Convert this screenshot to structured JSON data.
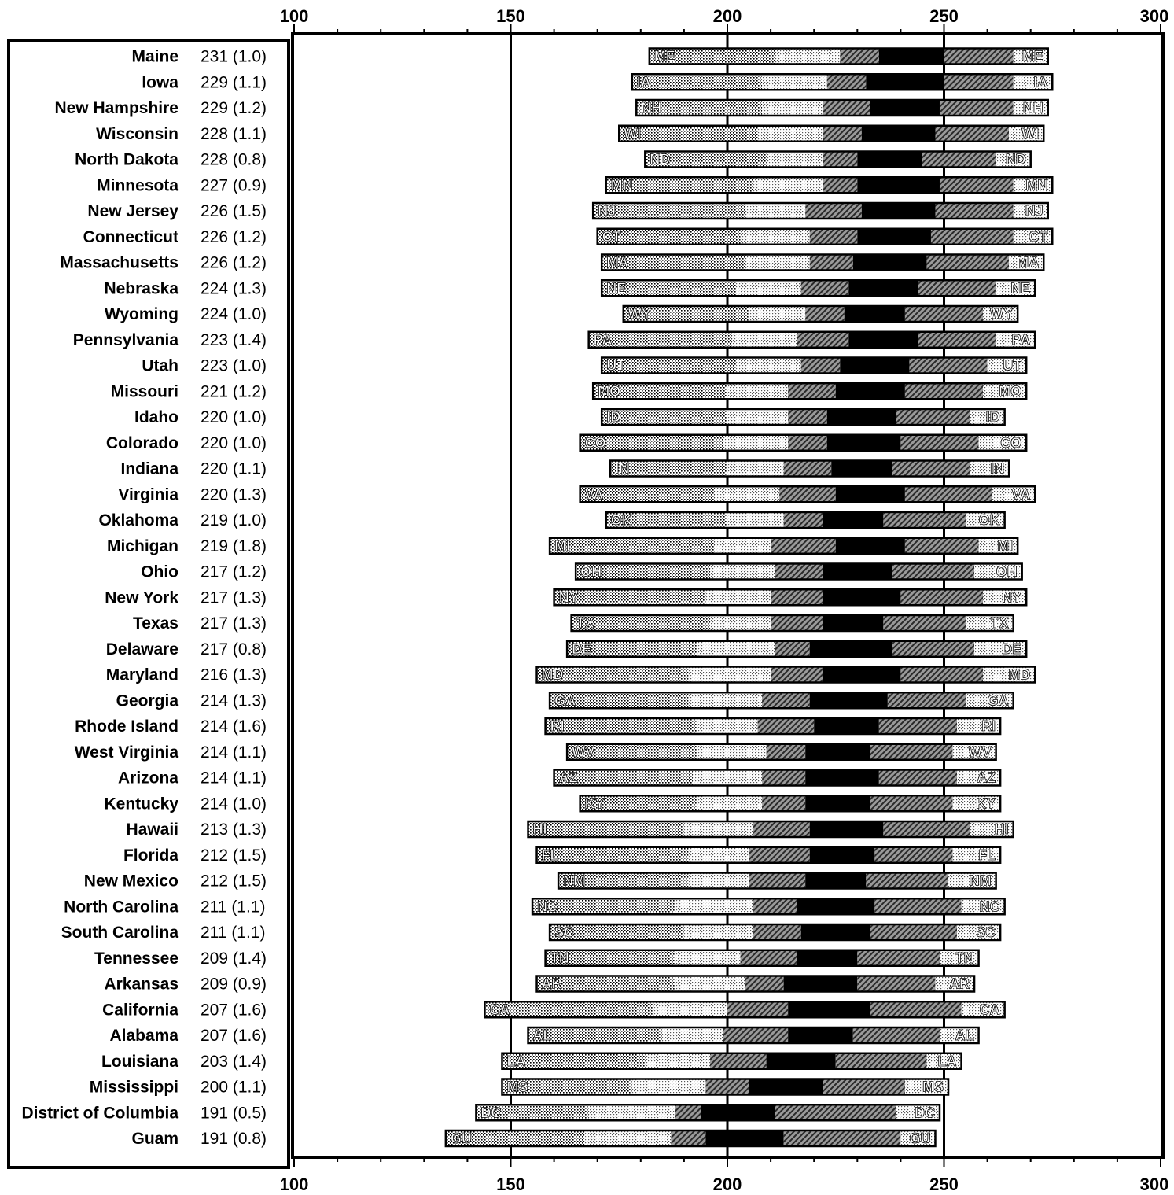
{
  "chart_data": {
    "type": "bar",
    "subtype": "percentile-range",
    "x_ticks": [
      100,
      150,
      200,
      250,
      300
    ],
    "xlim": [
      100,
      300
    ],
    "grid_lines": [
      150,
      200,
      250
    ],
    "segments": [
      "5th-10th",
      "10th-25th",
      "25th-40th",
      "40th-60th",
      "60th-75th",
      "75th-90th",
      "90th-95th"
    ],
    "rows": [
      {
        "state": "Maine",
        "mean": "231",
        "se": "(1.0)",
        "abbr": "ME",
        "p": [
          182,
          190,
          211,
          226,
          235,
          250,
          266,
          274
        ]
      },
      {
        "state": "Iowa",
        "mean": "229",
        "se": "(1.1)",
        "abbr": "IA",
        "p": [
          178,
          186,
          208,
          223,
          232,
          250,
          266,
          275
        ]
      },
      {
        "state": "New Hampshire",
        "mean": "229",
        "se": "(1.2)",
        "abbr": "NH",
        "p": [
          179,
          187,
          208,
          222,
          233,
          249,
          266,
          274
        ]
      },
      {
        "state": "Wisconsin",
        "mean": "228",
        "se": "(1.1)",
        "abbr": "WI",
        "p": [
          175,
          184,
          207,
          222,
          231,
          248,
          265,
          273
        ]
      },
      {
        "state": "North Dakota",
        "mean": "228",
        "se": "(0.8)",
        "abbr": "ND",
        "p": [
          181,
          189,
          209,
          222,
          230,
          245,
          262,
          270
        ]
      },
      {
        "state": "Minnesota",
        "mean": "227",
        "se": "(0.9)",
        "abbr": "MN",
        "p": [
          172,
          180,
          206,
          222,
          230,
          249,
          266,
          275
        ]
      },
      {
        "state": "New Jersey",
        "mean": "226",
        "se": "(1.5)",
        "abbr": "NJ",
        "p": [
          169,
          177,
          204,
          218,
          231,
          248,
          266,
          274
        ]
      },
      {
        "state": "Connecticut",
        "mean": "226",
        "se": "(1.2)",
        "abbr": "CT",
        "p": [
          170,
          178,
          203,
          219,
          230,
          247,
          266,
          275
        ]
      },
      {
        "state": "Massachusetts",
        "mean": "226",
        "se": "(1.2)",
        "abbr": "MA",
        "p": [
          171,
          179,
          204,
          219,
          229,
          246,
          265,
          273
        ]
      },
      {
        "state": "Nebraska",
        "mean": "224",
        "se": "(1.3)",
        "abbr": "NE",
        "p": [
          171,
          179,
          202,
          217,
          228,
          244,
          262,
          271
        ]
      },
      {
        "state": "Wyoming",
        "mean": "224",
        "se": "(1.0)",
        "abbr": "WY",
        "p": [
          176,
          184,
          205,
          218,
          227,
          241,
          259,
          267
        ]
      },
      {
        "state": "Pennsylvania",
        "mean": "223",
        "se": "(1.4)",
        "abbr": "PA",
        "p": [
          168,
          176,
          201,
          216,
          228,
          244,
          262,
          271
        ]
      },
      {
        "state": "Utah",
        "mean": "223",
        "se": "(1.0)",
        "abbr": "UT",
        "p": [
          171,
          179,
          202,
          217,
          226,
          242,
          260,
          269
        ]
      },
      {
        "state": "Missouri",
        "mean": "221",
        "se": "(1.2)",
        "abbr": "MO",
        "p": [
          169,
          177,
          200,
          214,
          225,
          241,
          259,
          269
        ]
      },
      {
        "state": "Idaho",
        "mean": "220",
        "se": "(1.0)",
        "abbr": "ID",
        "p": [
          171,
          179,
          200,
          214,
          223,
          239,
          256,
          264
        ]
      },
      {
        "state": "Colorado",
        "mean": "220",
        "se": "(1.0)",
        "abbr": "CO",
        "p": [
          166,
          174,
          199,
          214,
          223,
          240,
          258,
          269
        ]
      },
      {
        "state": "Indiana",
        "mean": "220",
        "se": "(1.1)",
        "abbr": "IN",
        "p": [
          173,
          181,
          200,
          213,
          224,
          238,
          256,
          265
        ]
      },
      {
        "state": "Virginia",
        "mean": "220",
        "se": "(1.3)",
        "abbr": "VA",
        "p": [
          166,
          174,
          197,
          212,
          225,
          241,
          261,
          271
        ]
      },
      {
        "state": "Oklahoma",
        "mean": "219",
        "se": "(1.0)",
        "abbr": "OK",
        "p": [
          172,
          180,
          200,
          213,
          222,
          236,
          255,
          264
        ]
      },
      {
        "state": "Michigan",
        "mean": "219",
        "se": "(1.8)",
        "abbr": "MI",
        "p": [
          159,
          167,
          197,
          210,
          225,
          241,
          258,
          267
        ]
      },
      {
        "state": "Ohio",
        "mean": "217",
        "se": "(1.2)",
        "abbr": "OH",
        "p": [
          165,
          173,
          196,
          211,
          222,
          238,
          257,
          268
        ]
      },
      {
        "state": "New York",
        "mean": "217",
        "se": "(1.3)",
        "abbr": "NY",
        "p": [
          160,
          168,
          195,
          210,
          222,
          240,
          259,
          269
        ]
      },
      {
        "state": "Texas",
        "mean": "217",
        "se": "(1.3)",
        "abbr": "TX",
        "p": [
          164,
          172,
          196,
          210,
          222,
          236,
          255,
          266
        ]
      },
      {
        "state": "Delaware",
        "mean": "217",
        "se": "(0.8)",
        "abbr": "DE",
        "p": [
          163,
          171,
          193,
          211,
          219,
          238,
          257,
          269
        ]
      },
      {
        "state": "Maryland",
        "mean": "216",
        "se": "(1.3)",
        "abbr": "MD",
        "p": [
          156,
          164,
          191,
          210,
          222,
          240,
          259,
          271
        ]
      },
      {
        "state": "Georgia",
        "mean": "214",
        "se": "(1.3)",
        "abbr": "GA",
        "p": [
          159,
          167,
          191,
          208,
          219,
          237,
          255,
          266
        ]
      },
      {
        "state": "Rhode Island",
        "mean": "214",
        "se": "(1.6)",
        "abbr": "RI",
        "p": [
          158,
          166,
          193,
          207,
          220,
          235,
          253,
          263
        ]
      },
      {
        "state": "West Virginia",
        "mean": "214",
        "se": "(1.1)",
        "abbr": "WV",
        "p": [
          163,
          171,
          193,
          209,
          218,
          233,
          252,
          262
        ]
      },
      {
        "state": "Arizona",
        "mean": "214",
        "se": "(1.1)",
        "abbr": "AZ",
        "p": [
          160,
          168,
          192,
          208,
          218,
          235,
          253,
          263
        ]
      },
      {
        "state": "Kentucky",
        "mean": "214",
        "se": "(1.0)",
        "abbr": "KY",
        "p": [
          166,
          174,
          193,
          208,
          218,
          233,
          252,
          263
        ]
      },
      {
        "state": "Hawaii",
        "mean": "213",
        "se": "(1.3)",
        "abbr": "HI",
        "p": [
          154,
          162,
          190,
          206,
          219,
          236,
          256,
          266
        ]
      },
      {
        "state": "Florida",
        "mean": "212",
        "se": "(1.5)",
        "abbr": "FL",
        "p": [
          156,
          164,
          191,
          205,
          219,
          234,
          252,
          263
        ]
      },
      {
        "state": "New Mexico",
        "mean": "212",
        "se": "(1.5)",
        "abbr": "NM",
        "p": [
          161,
          169,
          191,
          205,
          218,
          232,
          251,
          262
        ]
      },
      {
        "state": "North Carolina",
        "mean": "211",
        "se": "(1.1)",
        "abbr": "NC",
        "p": [
          155,
          163,
          188,
          206,
          216,
          234,
          254,
          264
        ]
      },
      {
        "state": "South Carolina",
        "mean": "211",
        "se": "(1.1)",
        "abbr": "SC",
        "p": [
          159,
          167,
          190,
          206,
          217,
          233,
          253,
          263
        ]
      },
      {
        "state": "Tennessee",
        "mean": "209",
        "se": "(1.4)",
        "abbr": "TN",
        "p": [
          158,
          166,
          188,
          203,
          216,
          230,
          249,
          258
        ]
      },
      {
        "state": "Arkansas",
        "mean": "209",
        "se": "(0.9)",
        "abbr": "AR",
        "p": [
          156,
          164,
          188,
          204,
          213,
          230,
          248,
          257
        ]
      },
      {
        "state": "California",
        "mean": "207",
        "se": "(1.6)",
        "abbr": "CA",
        "p": [
          144,
          152,
          183,
          200,
          214,
          233,
          254,
          264
        ]
      },
      {
        "state": "Alabama",
        "mean": "207",
        "se": "(1.6)",
        "abbr": "AL",
        "p": [
          154,
          162,
          185,
          199,
          214,
          229,
          249,
          258
        ]
      },
      {
        "state": "Louisiana",
        "mean": "203",
        "se": "(1.4)",
        "abbr": "LA",
        "p": [
          148,
          156,
          181,
          196,
          209,
          225,
          246,
          254
        ]
      },
      {
        "state": "Mississippi",
        "mean": "200",
        "se": "(1.1)",
        "abbr": "MS",
        "p": [
          148,
          156,
          178,
          195,
          205,
          222,
          241,
          251
        ]
      },
      {
        "state": "District of Columbia",
        "mean": "191",
        "se": "(0.5)",
        "abbr": "DC",
        "p": [
          142,
          150,
          168,
          188,
          194,
          211,
          239,
          249
        ]
      },
      {
        "state": "Guam",
        "mean": "191",
        "se": "(0.8)",
        "abbr": "GU",
        "p": [
          135,
          143,
          167,
          187,
          195,
          213,
          240,
          248
        ]
      }
    ]
  }
}
